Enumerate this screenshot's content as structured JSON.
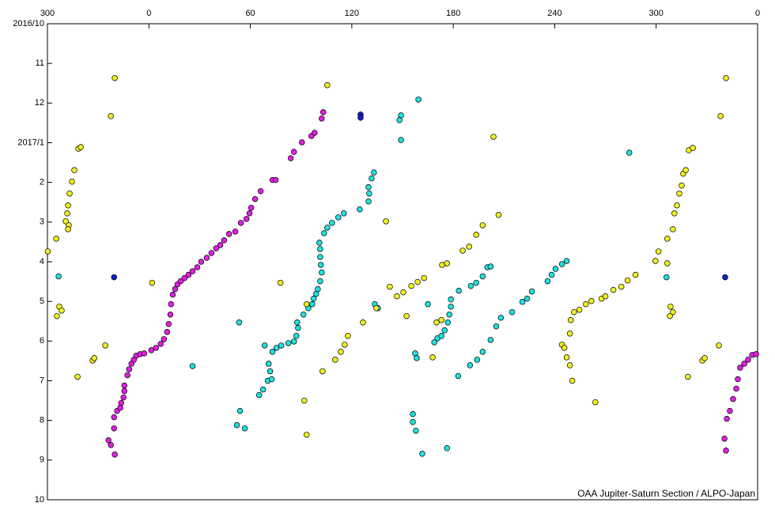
{
  "chart_data": {
    "type": "scatter",
    "credit": "OAA Jupiter-Saturn Section / ALPO-Japan",
    "xlim": [
      -60,
      360
    ],
    "ylim": [
      0,
      12
    ],
    "y_reversed": true,
    "x_axis_position": "top",
    "xticks": [
      {
        "value": -60,
        "label": "300"
      },
      0,
      60,
      120,
      180,
      240,
      300,
      {
        "value": 360,
        "label": "0"
      }
    ],
    "yticks": [
      {
        "value": 0,
        "label": "2016/10"
      },
      {
        "value": 1,
        "label": "11"
      },
      {
        "value": 2,
        "label": "12"
      },
      {
        "value": 3,
        "label": "2017/1"
      },
      {
        "value": 4,
        "label": "2"
      },
      {
        "value": 5,
        "label": "3"
      },
      {
        "value": 6,
        "label": "4"
      },
      {
        "value": 7,
        "label": "5"
      },
      {
        "value": 8,
        "label": "6"
      },
      {
        "value": 9,
        "label": "7"
      },
      {
        "value": 10,
        "label": "8"
      },
      {
        "value": 11,
        "label": "9"
      },
      {
        "value": 12,
        "label": "10"
      }
    ],
    "series": [
      {
        "color": "#e020e0",
        "x": [
          -20.2,
          -23.9,
          -22.5,
          -20.6,
          -20.6,
          -18.8,
          -16.9,
          -16.4,
          -15.0,
          -14.5,
          -14.5,
          -12.7,
          -11.7,
          -10.3,
          -8.9,
          -7.5,
          -5.2,
          -2.8,
          1.4,
          4.2,
          7.0,
          8.9,
          10.8,
          11.7,
          12.7,
          13.1,
          14.1,
          15.5,
          16.9,
          18.8,
          21.1,
          23.4,
          25.8,
          28.6,
          30.9,
          34.2,
          37.0,
          39.8,
          42.2,
          44.5,
          47.4,
          51.1,
          54.4,
          57.7,
          59.5,
          60.5,
          62.8,
          66.1,
          73.1,
          75.0,
          83.9,
          85.8,
          90.5,
          96.1,
          98.0,
          102.2,
          103.1,
          340.4,
          341.3,
          341.8,
          343.6,
          345.5,
          347.4,
          348.3,
          349.7,
          352.1,
          354.4,
          356.8,
          359.1
        ],
        "y": [
          10.86,
          10.5,
          10.62,
          10.2,
          9.92,
          9.76,
          9.68,
          9.56,
          9.42,
          9.26,
          9.12,
          8.86,
          8.71,
          8.57,
          8.47,
          8.37,
          8.33,
          8.31,
          8.23,
          8.17,
          8.07,
          7.95,
          7.77,
          7.57,
          7.33,
          7.07,
          6.83,
          6.69,
          6.57,
          6.49,
          6.41,
          6.33,
          6.24,
          6.14,
          6.0,
          5.9,
          5.78,
          5.66,
          5.58,
          5.46,
          5.3,
          5.24,
          5.02,
          4.92,
          4.78,
          4.64,
          4.42,
          4.22,
          3.94,
          3.94,
          3.39,
          3.23,
          2.99,
          2.83,
          2.75,
          2.39,
          2.23,
          10.46,
          10.76,
          9.96,
          9.76,
          9.46,
          9.2,
          8.96,
          8.67,
          8.57,
          8.47,
          8.35,
          8.33
        ]
      },
      {
        "color": "#20e0e0",
        "x": [
          56.7,
          52.0,
          53.9,
          65.2,
          67.5,
          70.3,
          72.6,
          71.7,
          70.8,
          68.5,
          73.1,
          75.5,
          78.3,
          82.5,
          85.8,
          87.2,
          88.2,
          87.7,
          91.4,
          94.3,
          96.6,
          97.5,
          98.9,
          99.9,
          101.3,
          102.2,
          101.7,
          101.3,
          101.3,
          100.8,
          103.6,
          105.5,
          108.3,
          112.0,
          115.3,
          124.7,
          129.9,
          130.3,
          129.9,
          131.7,
          133.1,
          53.4,
          25.8,
          -53.4,
          149.1,
          148.2,
          149.1,
          159.4,
          133.6,
          135.5,
          156.1,
          156.1,
          157.5,
          158.4,
          157.9,
          161.7,
          165.0,
          168.8,
          170.6,
          173.0,
          174.9,
          176.8,
          177.7,
          178.6,
          178.6,
          183.3,
          190.4,
          193.6,
          197.4,
          200.2,
          202.1,
          176.3,
          182.9,
          189.9,
          194.1,
          197.4,
          202.1,
          205.4,
          208.2,
          214.8,
          220.9,
          223.7,
          226.5,
          235.8,
          238.2,
          240.5,
          244.3,
          247.1,
          284.1,
          306.1
        ],
        "y": [
          10.2,
          10.12,
          9.76,
          9.36,
          9.22,
          9.0,
          8.96,
          8.76,
          8.57,
          8.11,
          8.27,
          8.17,
          8.11,
          8.05,
          8.01,
          7.87,
          7.67,
          7.53,
          7.33,
          7.17,
          7.07,
          6.93,
          6.81,
          6.69,
          6.49,
          6.27,
          6.08,
          5.88,
          5.68,
          5.52,
          5.28,
          5.14,
          5.02,
          4.88,
          4.78,
          4.68,
          4.48,
          4.28,
          4.12,
          3.9,
          3.75,
          7.53,
          8.63,
          6.37,
          2.31,
          2.43,
          2.93,
          1.91,
          7.07,
          7.17,
          9.84,
          10.04,
          8.31,
          8.43,
          10.26,
          10.84,
          7.07,
          8.03,
          7.93,
          7.87,
          7.73,
          7.53,
          7.33,
          7.13,
          6.95,
          6.73,
          6.61,
          6.53,
          6.37,
          6.14,
          6.12,
          10.7,
          8.88,
          8.61,
          8.47,
          8.27,
          7.97,
          7.63,
          7.41,
          7.27,
          7.01,
          6.93,
          6.75,
          6.49,
          6.33,
          6.18,
          6.06,
          5.98,
          3.25,
          6.39
        ]
      },
      {
        "color": "#f0f020",
        "x": [
          -20.2,
          -22.5,
          -41.7,
          -40.3,
          -44.1,
          -45.5,
          -46.9,
          -47.8,
          -48.3,
          -49.2,
          -47.4,
          -47.8,
          -54.8,
          -59.8,
          -53.0,
          -51.6,
          -54.4,
          -33.3,
          -32.3,
          -25.8,
          -42.2,
          1.9,
          77.8,
          105.5,
          93.3,
          91.9,
          93.3,
          102.7,
          110.2,
          113.5,
          115.8,
          117.7,
          126.6,
          134.5,
          140.2,
          142.5,
          146.7,
          150.5,
          155.2,
          158.9,
          162.7,
          152.4,
          167.8,
          170.1,
          173.0,
          173.4,
          176.3,
          185.6,
          189.4,
          193.6,
          197.4,
          206.8,
          203.8,
          244.3,
          245.7,
          247.1,
          249.0,
          250.4,
          249.0,
          249.5,
          251.4,
          254.6,
          258.4,
          261.7,
          264.0,
          267.7,
          270.0,
          274.7,
          279.4,
          283.1,
          287.8,
          299.6,
          301.4,
          306.6,
          309.9,
          310.8,
          312.3,
          313.7,
          315.1,
          316.0,
          317.5,
          319.3,
          321.7,
          338.1,
          341.3,
          308.5,
          309.9,
          308.1,
          318.8,
          327.3,
          328.7,
          337.1,
          306.6
        ],
        "y": [
          1.37,
          2.33,
          3.15,
          3.11,
          3.69,
          3.98,
          4.28,
          4.58,
          4.78,
          4.98,
          5.08,
          5.18,
          5.42,
          5.74,
          7.13,
          7.23,
          7.37,
          8.49,
          8.43,
          8.11,
          8.9,
          6.53,
          6.53,
          1.55,
          7.07,
          9.5,
          10.36,
          8.76,
          8.47,
          8.27,
          8.09,
          7.87,
          7.53,
          7.17,
          4.98,
          6.63,
          6.87,
          6.77,
          6.61,
          6.51,
          6.41,
          7.37,
          8.41,
          7.53,
          7.47,
          6.08,
          6.04,
          5.72,
          5.62,
          5.32,
          5.08,
          4.82,
          2.85,
          8.09,
          8.17,
          8.41,
          8.61,
          9.0,
          7.81,
          7.47,
          7.27,
          7.21,
          7.07,
          6.99,
          9.54,
          6.93,
          6.87,
          6.71,
          6.63,
          6.47,
          6.33,
          5.98,
          5.74,
          5.42,
          5.18,
          4.78,
          4.58,
          4.28,
          4.08,
          3.78,
          3.69,
          3.19,
          3.13,
          2.33,
          1.37,
          7.13,
          7.27,
          7.37,
          8.9,
          8.49,
          8.43,
          8.11,
          6.04
        ]
      },
      {
        "color": "#1020d0",
        "x": [
          125.2,
          125.2,
          -20.6,
          340.8
        ],
        "y": [
          2.29,
          2.37,
          6.39,
          6.39
        ]
      }
    ]
  }
}
